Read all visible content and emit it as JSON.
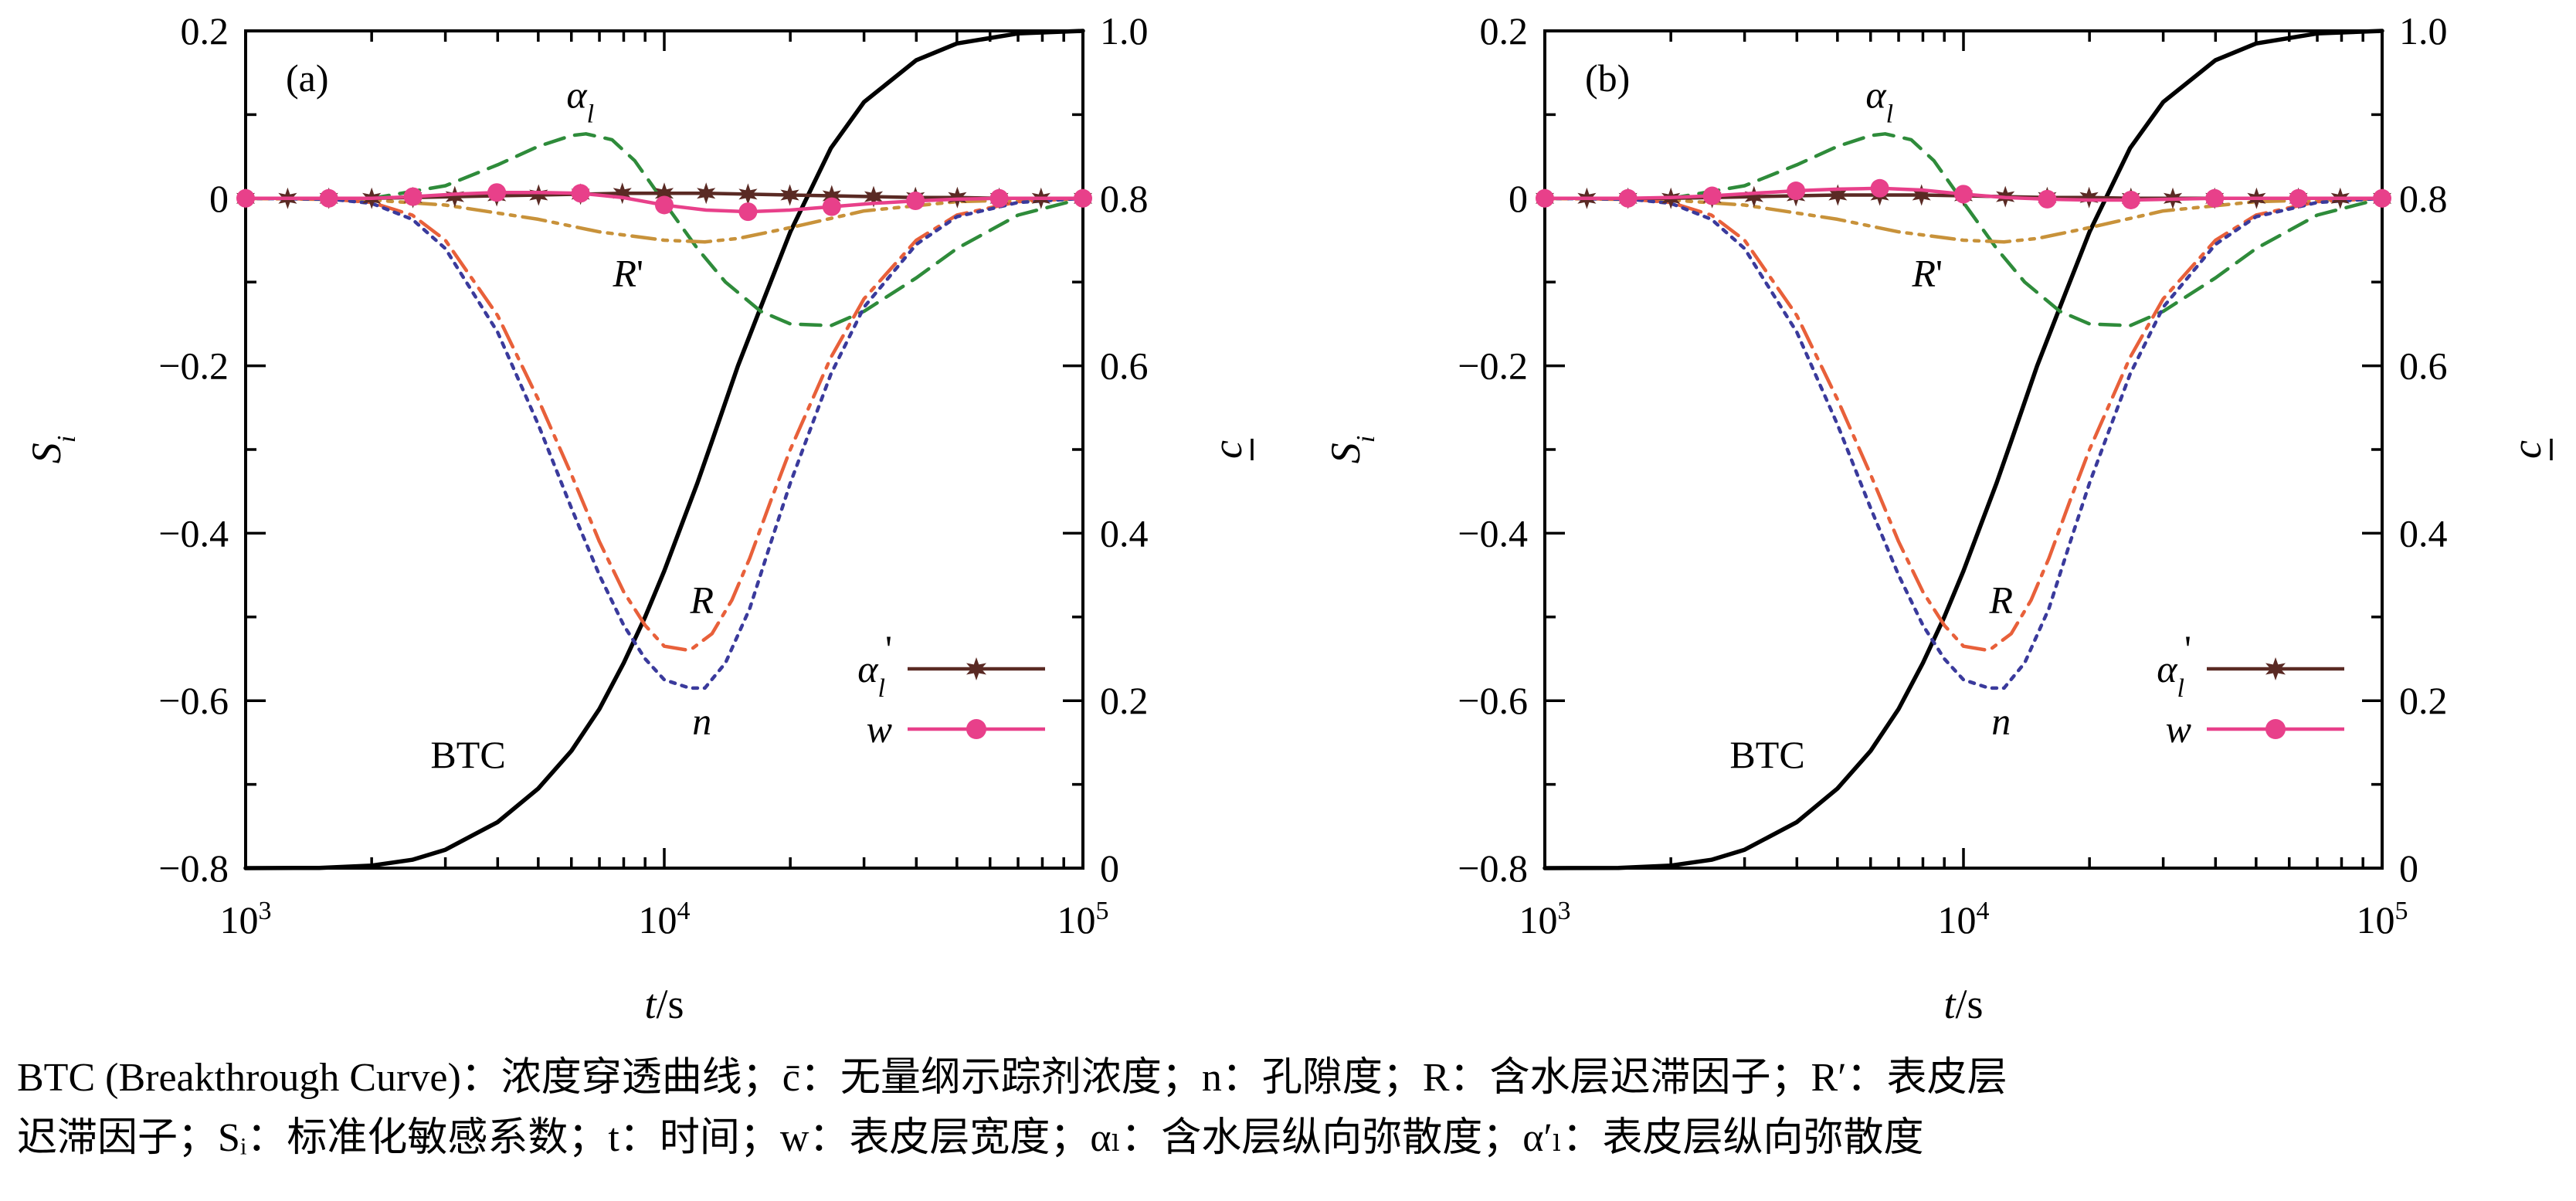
{
  "caption": {
    "line1": "BTC (Breakthrough Curve)：浓度穿透曲线；c̄：无量纲示踪剂浓度；n：孔隙度；R：含水层迟滞因子；R′：表皮层",
    "line2": "迟滞因子；Sᵢ：标准化敏感系数；t：时间；w：表皮层宽度；αₗ：含水层纵向弥散度；α′ₗ：表皮层纵向弥散度"
  },
  "chart_data": [
    {
      "type": "line",
      "panel_label": "(a)",
      "xlabel": "t/s",
      "ylabel": "Si",
      "y2label": "c",
      "x_scale": "log",
      "xlim": [
        1000,
        100000
      ],
      "x_ticks": [
        1000,
        10000,
        100000
      ],
      "x_tick_labels": [
        [
          "10",
          "3"
        ],
        [
          "10",
          "4"
        ],
        [
          "10",
          "5"
        ]
      ],
      "ylim": [
        -0.8,
        0.2
      ],
      "y_ticks": [
        -0.8,
        -0.6,
        -0.4,
        -0.2,
        0,
        0.2
      ],
      "y_tick_labels": [
        "−0.8",
        "−0.6",
        "−0.4",
        "−0.2",
        "0",
        "0.2"
      ],
      "y2lim": [
        0,
        1.0
      ],
      "y2_ticks": [
        0,
        0.2,
        0.4,
        0.6,
        0.8,
        1.0
      ],
      "y2_tick_labels": [
        "0",
        "0.2",
        "0.4",
        "0.6",
        "0.8",
        "1.0"
      ],
      "grid": false,
      "legend_position": "bottom-right",
      "series": [
        {
          "name": "BTC",
          "axis": "right",
          "style": "solid",
          "color": "#000000",
          "x": [
            1000,
            1500,
            2000,
            2500,
            3000,
            4000,
            5000,
            6000,
            7000,
            8000,
            9000,
            10000,
            11000,
            12000,
            13000,
            15000,
            17000,
            20000,
            25000,
            30000,
            40000,
            50000,
            70000,
            100000
          ],
          "y": [
            0,
            0.0003,
            0.003,
            0.01,
            0.022,
            0.055,
            0.095,
            0.14,
            0.19,
            0.245,
            0.3,
            0.355,
            0.41,
            0.46,
            0.51,
            0.6,
            0.67,
            0.76,
            0.86,
            0.915,
            0.965,
            0.985,
            0.997,
            1.0
          ]
        },
        {
          "name": "αl",
          "axis": "left",
          "style": "dashed",
          "color": "#2e8b3a",
          "x": [
            1000,
            2000,
            3000,
            4000,
            5000,
            6000,
            6500,
            7500,
            8500,
            10000,
            12000,
            14000,
            17000,
            20000,
            25000,
            30000,
            40000,
            50000,
            70000,
            100000
          ],
          "y": [
            0,
            0,
            0.015,
            0.04,
            0.062,
            0.075,
            0.077,
            0.07,
            0.045,
            -0.005,
            -0.06,
            -0.1,
            -0.135,
            -0.15,
            -0.152,
            -0.135,
            -0.095,
            -0.06,
            -0.02,
            0
          ]
        },
        {
          "name": "R'",
          "axis": "left",
          "style": "dashdotdot",
          "color": "#c8923a",
          "x": [
            1000,
            2000,
            3000,
            5000,
            7000,
            10000,
            12500,
            15000,
            20000,
            30000,
            50000,
            100000
          ],
          "y": [
            0,
            -0.002,
            -0.008,
            -0.025,
            -0.04,
            -0.05,
            -0.052,
            -0.048,
            -0.035,
            -0.015,
            -0.004,
            0
          ]
        },
        {
          "name": "R",
          "axis": "left",
          "style": "dashdot",
          "color": "#e8603a",
          "x": [
            1000,
            1600,
            2000,
            2500,
            3000,
            4000,
            5000,
            6000,
            7000,
            8000,
            9000,
            10000,
            11500,
            13000,
            14500,
            16000,
            18000,
            20000,
            25000,
            30000,
            40000,
            50000,
            70000,
            100000
          ],
          "y": [
            0,
            -0.001,
            -0.005,
            -0.02,
            -0.05,
            -0.14,
            -0.24,
            -0.33,
            -0.41,
            -0.47,
            -0.51,
            -0.535,
            -0.54,
            -0.52,
            -0.48,
            -0.43,
            -0.36,
            -0.3,
            -0.19,
            -0.12,
            -0.05,
            -0.02,
            -0.004,
            0
          ]
        },
        {
          "name": "n",
          "axis": "left",
          "style": "dotted",
          "color": "#3a3a9c",
          "x": [
            1000,
            1600,
            2000,
            2500,
            3000,
            4000,
            5000,
            6000,
            7000,
            8000,
            9000,
            10000,
            11500,
            12500,
            14000,
            16000,
            18000,
            20000,
            25000,
            30000,
            40000,
            50000,
            70000,
            100000
          ],
          "y": [
            0,
            -0.001,
            -0.006,
            -0.025,
            -0.06,
            -0.16,
            -0.27,
            -0.37,
            -0.45,
            -0.51,
            -0.55,
            -0.575,
            -0.585,
            -0.585,
            -0.555,
            -0.49,
            -0.41,
            -0.34,
            -0.21,
            -0.13,
            -0.055,
            -0.022,
            -0.005,
            0
          ]
        },
        {
          "name": "α'l",
          "axis": "left",
          "style": "solid",
          "color": "#5a2a24",
          "marker": "star",
          "x": [
            1000,
            1260,
            1580,
            2000,
            2510,
            3160,
            3980,
            5010,
            6310,
            7940,
            10000,
            12590,
            15850,
            19950,
            25120,
            31620,
            39810,
            50120,
            63100,
            79430,
            100000
          ],
          "y": [
            0,
            0,
            0,
            0,
            0.001,
            0.002,
            0.003,
            0.004,
            0.005,
            0.006,
            0.006,
            0.006,
            0.005,
            0.004,
            0.003,
            0.002,
            0.001,
            0.001,
            0,
            0,
            0
          ]
        },
        {
          "name": "w",
          "axis": "left",
          "style": "solid",
          "color": "#e8408a",
          "marker": "circle",
          "x": [
            1000,
            1260,
            1580,
            2000,
            2510,
            3160,
            3980,
            5010,
            6310,
            7940,
            10000,
            12590,
            15850,
            19950,
            25120,
            31620,
            39810,
            50120,
            63100,
            79430,
            100000
          ],
          "y": [
            0,
            0,
            0,
            0,
            0.002,
            0.005,
            0.007,
            0.007,
            0.006,
            0.001,
            -0.008,
            -0.014,
            -0.016,
            -0.014,
            -0.01,
            -0.006,
            -0.003,
            -0.001,
            0,
            0,
            0
          ],
          "marker_x": [
            1000,
            1580,
            2510,
            3980,
            6310,
            10000,
            15850,
            25120,
            39810,
            63100,
            100000
          ],
          "marker_y": [
            0,
            0,
            0.002,
            0.007,
            0.006,
            -0.008,
            -0.016,
            -0.01,
            -0.003,
            0,
            0
          ]
        }
      ],
      "annotations": [
        {
          "text": "αl",
          "x": 6300,
          "y": 0.108
        },
        {
          "text": "R'",
          "x": 8200,
          "y": -0.105
        },
        {
          "text": "R",
          "x": 12300,
          "y": -0.495
        },
        {
          "text": "n",
          "x": 12300,
          "y": -0.64
        },
        {
          "text": "BTC",
          "x": 3400,
          "y": -0.68
        }
      ]
    },
    {
      "type": "line",
      "panel_label": "(b)",
      "xlabel": "t/s",
      "ylabel": "Si",
      "y2label": "c",
      "x_scale": "log",
      "xlim": [
        1000,
        100000
      ],
      "x_ticks": [
        1000,
        10000,
        100000
      ],
      "x_tick_labels": [
        [
          "10",
          "3"
        ],
        [
          "10",
          "4"
        ],
        [
          "10",
          "5"
        ]
      ],
      "ylim": [
        -0.8,
        0.2
      ],
      "y_ticks": [
        -0.8,
        -0.6,
        -0.4,
        -0.2,
        0,
        0.2
      ],
      "y_tick_labels": [
        "−0.8",
        "−0.6",
        "−0.4",
        "−0.2",
        "0",
        "0.2"
      ],
      "y2lim": [
        0,
        1.0
      ],
      "y2_ticks": [
        0,
        0.2,
        0.4,
        0.6,
        0.8,
        1.0
      ],
      "y2_tick_labels": [
        "0",
        "0.2",
        "0.4",
        "0.6",
        "0.8",
        "1.0"
      ],
      "grid": false,
      "legend_position": "bottom-right",
      "series": [
        {
          "name": "BTC",
          "axis": "right",
          "style": "solid",
          "color": "#000000",
          "x": [
            1000,
            1500,
            2000,
            2500,
            3000,
            4000,
            5000,
            6000,
            7000,
            8000,
            9000,
            10000,
            11000,
            12000,
            13000,
            15000,
            17000,
            20000,
            25000,
            30000,
            40000,
            50000,
            70000,
            100000
          ],
          "y": [
            0,
            0.0003,
            0.003,
            0.01,
            0.022,
            0.055,
            0.095,
            0.14,
            0.19,
            0.245,
            0.3,
            0.355,
            0.41,
            0.46,
            0.51,
            0.6,
            0.67,
            0.76,
            0.86,
            0.915,
            0.965,
            0.985,
            0.997,
            1.0
          ]
        },
        {
          "name": "αl",
          "axis": "left",
          "style": "dashed",
          "color": "#2e8b3a",
          "x": [
            1000,
            2000,
            3000,
            4000,
            5000,
            6000,
            6500,
            7500,
            8500,
            10000,
            12000,
            14000,
            17000,
            20000,
            25000,
            30000,
            40000,
            50000,
            70000,
            100000
          ],
          "y": [
            0,
            0,
            0.015,
            0.04,
            0.062,
            0.075,
            0.077,
            0.07,
            0.045,
            -0.005,
            -0.06,
            -0.1,
            -0.135,
            -0.15,
            -0.152,
            -0.135,
            -0.095,
            -0.06,
            -0.02,
            0
          ]
        },
        {
          "name": "R'",
          "axis": "left",
          "style": "dashdotdot",
          "color": "#c8923a",
          "x": [
            1000,
            2000,
            3000,
            5000,
            7000,
            10000,
            12500,
            15000,
            20000,
            30000,
            50000,
            100000
          ],
          "y": [
            0,
            -0.002,
            -0.008,
            -0.025,
            -0.04,
            -0.05,
            -0.052,
            -0.048,
            -0.035,
            -0.015,
            -0.004,
            0
          ]
        },
        {
          "name": "R",
          "axis": "left",
          "style": "dashdot",
          "color": "#e8603a",
          "x": [
            1000,
            1600,
            2000,
            2500,
            3000,
            4000,
            5000,
            6000,
            7000,
            8000,
            9000,
            10000,
            11500,
            13000,
            14500,
            16000,
            18000,
            20000,
            25000,
            30000,
            40000,
            50000,
            70000,
            100000
          ],
          "y": [
            0,
            -0.001,
            -0.005,
            -0.02,
            -0.05,
            -0.14,
            -0.24,
            -0.33,
            -0.41,
            -0.47,
            -0.51,
            -0.535,
            -0.54,
            -0.52,
            -0.48,
            -0.43,
            -0.36,
            -0.3,
            -0.19,
            -0.12,
            -0.05,
            -0.02,
            -0.004,
            0
          ]
        },
        {
          "name": "n",
          "axis": "left",
          "style": "dotted",
          "color": "#3a3a9c",
          "x": [
            1000,
            1600,
            2000,
            2500,
            3000,
            4000,
            5000,
            6000,
            7000,
            8000,
            9000,
            10000,
            11500,
            12500,
            14000,
            16000,
            18000,
            20000,
            25000,
            30000,
            40000,
            50000,
            70000,
            100000
          ],
          "y": [
            0,
            -0.001,
            -0.006,
            -0.025,
            -0.06,
            -0.16,
            -0.27,
            -0.37,
            -0.45,
            -0.51,
            -0.55,
            -0.575,
            -0.585,
            -0.585,
            -0.555,
            -0.49,
            -0.41,
            -0.34,
            -0.21,
            -0.13,
            -0.055,
            -0.022,
            -0.005,
            0
          ]
        },
        {
          "name": "α'l",
          "axis": "left",
          "style": "solid",
          "color": "#5a2a24",
          "marker": "star",
          "x": [
            1000,
            1260,
            1580,
            2000,
            2510,
            3160,
            3980,
            5010,
            6310,
            7940,
            10000,
            12590,
            15850,
            19950,
            25120,
            31620,
            39810,
            50120,
            63100,
            79430,
            100000
          ],
          "y": [
            0,
            0,
            0,
            0,
            0.001,
            0.002,
            0.003,
            0.004,
            0.004,
            0.004,
            0.003,
            0.002,
            0.001,
            0.001,
            0,
            0,
            0,
            0,
            0,
            0,
            0
          ]
        },
        {
          "name": "w",
          "axis": "left",
          "style": "solid",
          "color": "#e8408a",
          "marker": "circle",
          "x": [
            1000,
            1260,
            1580,
            2000,
            2510,
            3160,
            3980,
            5010,
            6310,
            7940,
            10000,
            12590,
            15850,
            19950,
            25120,
            31620,
            39810,
            50120,
            63100,
            79430,
            100000
          ],
          "y": [
            0,
            0,
            0,
            0.001,
            0.003,
            0.006,
            0.009,
            0.011,
            0.012,
            0.01,
            0.005,
            0.001,
            -0.001,
            -0.002,
            -0.002,
            -0.001,
            0,
            0,
            0,
            0,
            0
          ],
          "marker_x": [
            1000,
            1580,
            2510,
            3980,
            6310,
            10000,
            15850,
            25120,
            39810,
            63100,
            100000
          ],
          "marker_y": [
            0,
            0,
            0.003,
            0.009,
            0.012,
            0.005,
            -0.001,
            -0.002,
            0,
            0,
            0
          ]
        }
      ],
      "annotations": [
        {
          "text": "αl",
          "x": 6300,
          "y": 0.108
        },
        {
          "text": "R'",
          "x": 8200,
          "y": -0.105
        },
        {
          "text": "R",
          "x": 12300,
          "y": -0.495
        },
        {
          "text": "n",
          "x": 12300,
          "y": -0.64
        },
        {
          "text": "BTC",
          "x": 3400,
          "y": -0.68
        }
      ]
    }
  ]
}
